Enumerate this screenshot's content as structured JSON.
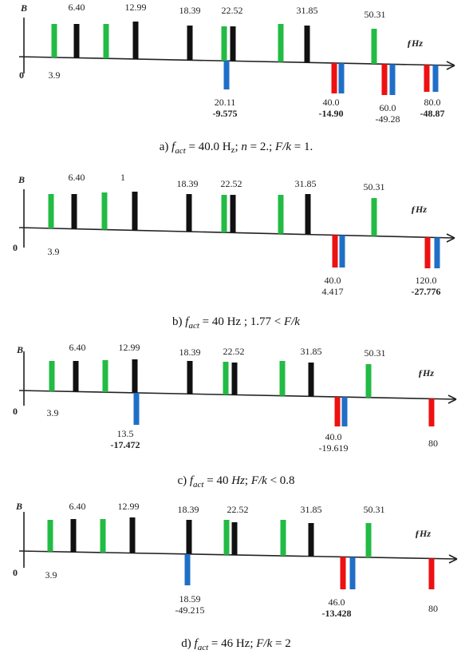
{
  "colors": {
    "green": "#22bb44",
    "black": "#111111",
    "red": "#ee1111",
    "blue": "#1f6fc8",
    "axis": "#222222"
  },
  "panels": [
    {
      "caption_parts": [
        "a) ",
        "f",
        "act",
        " = 40.0 H",
        "z",
        "; ",
        "n",
        " = 2.; ",
        "F/k",
        " = 1."
      ],
      "y_label": "B",
      "x_label": "ƒHz",
      "origin_label": "0",
      "top_labels": [
        "6.40",
        "12.99",
        "18.39",
        "22.52",
        "31.85",
        "50.31"
      ],
      "left_label": "3.9",
      "bottom_labels": [
        {
          "lines": [
            "20.11",
            "-9.575"
          ],
          "bold": [
            false,
            true
          ]
        },
        {
          "lines": [
            "40.0",
            "-14.90"
          ],
          "bold": [
            false,
            true
          ]
        },
        {
          "lines": [
            "60.0",
            "-49.28"
          ],
          "bold": [
            false,
            false
          ]
        },
        {
          "lines": [
            "80.0",
            "-48.87"
          ],
          "bold": [
            false,
            true
          ]
        }
      ]
    },
    {
      "caption_parts": [
        "b) ",
        "f",
        "act",
        " = 40 Hz ; 1.77 < ",
        "F/k",
        "",
        "",
        "",
        "",
        ""
      ],
      "y_label": "B",
      "x_label": "ƒHz",
      "origin_label": "0",
      "top_labels": [
        "6.40",
        "1",
        "18.39",
        "22.52",
        "31.85",
        "50.31"
      ],
      "left_label": "3.9",
      "bottom_labels": [
        {
          "lines": [
            "40.0",
            "4.417"
          ],
          "bold": [
            false,
            false
          ]
        },
        {
          "lines": [
            "120.0",
            "-27.776"
          ],
          "bold": [
            false,
            true
          ]
        }
      ]
    },
    {
      "caption_parts": [
        "c) ",
        "f",
        "act",
        " = 40 ",
        "Hz",
        "; ",
        "F/k",
        " < 0.8",
        "",
        ""
      ],
      "y_label": "B",
      "x_label": "ƒHz",
      "origin_label": "0",
      "top_labels": [
        "6.40",
        "12.99",
        "18.39",
        "22.52",
        "31.85",
        "50.31"
      ],
      "left_label": "3.9",
      "bottom_labels": [
        {
          "lines": [
            "13.5",
            "-17.472"
          ],
          "bold": [
            false,
            true
          ]
        },
        {
          "lines": [
            "40.0",
            "-19.619"
          ],
          "bold": [
            false,
            false
          ]
        },
        {
          "lines": [
            "80"
          ],
          "bold": [
            false
          ]
        }
      ]
    },
    {
      "caption_parts": [
        "d) ",
        "f",
        "act",
        " = 46 Hz; ",
        "F/k",
        " = 2",
        "",
        "",
        "",
        ""
      ],
      "y_label": "B",
      "x_label": "ƒHz",
      "origin_label": "0",
      "top_labels": [
        "6.40",
        "12.99",
        "18.39",
        "22.52",
        "31.85",
        "50.31"
      ],
      "left_label": "3.9",
      "bottom_labels": [
        {
          "lines": [
            "18.59",
            "-49.215"
          ],
          "bold": [
            false,
            false
          ]
        },
        {
          "lines": [
            "46.0",
            "-13.428"
          ],
          "bold": [
            false,
            true
          ]
        },
        {
          "lines": [
            "80"
          ],
          "bold": [
            false
          ]
        }
      ]
    }
  ]
}
